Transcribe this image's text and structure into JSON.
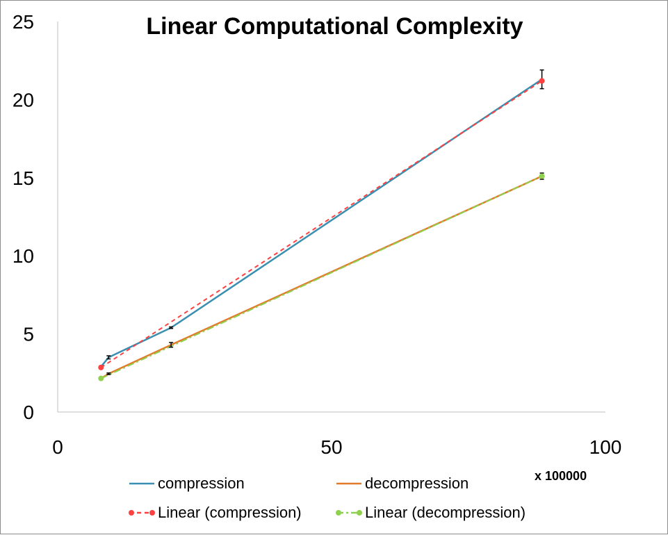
{
  "chart_data": {
    "type": "line",
    "title": "Linear Computational Complexity",
    "xlabel": "",
    "ylabel": "",
    "x_multiplier_label": "x 100000",
    "xlim": [
      0,
      100
    ],
    "ylim": [
      0,
      25
    ],
    "x_ticks": [
      "0",
      "50",
      "100"
    ],
    "y_ticks": [
      "0",
      "5",
      "10",
      "15",
      "20",
      "25"
    ],
    "grid": false,
    "legend_position": "bottom",
    "series": [
      {
        "name": "compression",
        "kind": "data",
        "color": "#3a8fb0",
        "dash": "",
        "marker": false,
        "x": [
          7.9,
          9.3,
          20.7,
          88.4
        ],
        "y": [
          2.9,
          3.5,
          5.4,
          21.3
        ],
        "err": [
          0.05,
          0.1,
          0.05,
          0.6
        ]
      },
      {
        "name": "decompression",
        "kind": "data",
        "color": "#e07b2a",
        "dash": "",
        "marker": false,
        "x": [
          7.9,
          9.3,
          20.7,
          88.4
        ],
        "y": [
          2.15,
          2.45,
          4.3,
          15.1
        ],
        "err": [
          0.05,
          0.05,
          0.15,
          0.2
        ]
      },
      {
        "name": "Linear (compression)",
        "kind": "trend",
        "color": "#ff4040",
        "dash": "6,5",
        "marker": true,
        "x": [
          7.9,
          88.4
        ],
        "y": [
          2.85,
          21.2
        ]
      },
      {
        "name": "Linear (decompression)",
        "kind": "trend",
        "color": "#8fd14f",
        "dash": "10,4,3,4",
        "marker": true,
        "x": [
          7.9,
          88.4
        ],
        "y": [
          2.15,
          15.1
        ]
      }
    ]
  }
}
